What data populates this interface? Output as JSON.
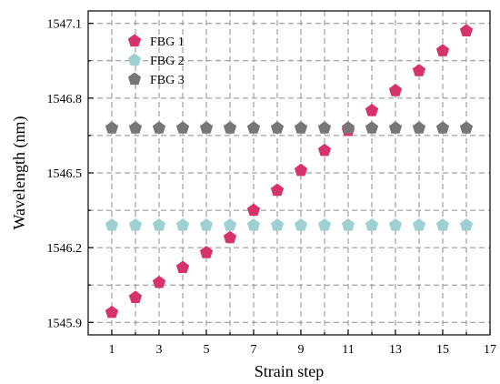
{
  "chart_data": {
    "type": "scatter",
    "title": "",
    "xlabel": "Strain step",
    "ylabel": "Wavelength (nm)",
    "xlim": [
      0,
      17
    ],
    "ylim": [
      1545.85,
      1547.15
    ],
    "xticks": [
      1,
      3,
      5,
      7,
      9,
      11,
      13,
      15,
      17
    ],
    "xtick_labels": [
      "1",
      "3",
      "5",
      "7",
      "9",
      "11",
      "13",
      "15",
      "17"
    ],
    "yticks": [
      1545.9,
      1546.2,
      1546.5,
      1546.8,
      1547.1
    ],
    "ytick_labels": [
      "1545.9",
      "1546.2",
      "1546.5",
      "1546.8",
      "1547.1"
    ],
    "x_minor_ticks": [
      2,
      4,
      6,
      8,
      10,
      12,
      14,
      16
    ],
    "y_minor_ticks": [
      1546.05,
      1546.35,
      1546.65,
      1546.95
    ],
    "grid": true,
    "grid_style": "dashed",
    "legend_position": "top-left",
    "marker": "pentagon",
    "series": [
      {
        "name": "FBG 1",
        "color": "#d6336c",
        "x": [
          1,
          2,
          3,
          4,
          5,
          6,
          7,
          8,
          9,
          10,
          11,
          12,
          13,
          14,
          15,
          16
        ],
        "y": [
          1545.94,
          1546.0,
          1546.06,
          1546.12,
          1546.18,
          1546.24,
          1546.35,
          1546.43,
          1546.51,
          1546.59,
          1546.67,
          1546.75,
          1546.83,
          1546.91,
          1546.99,
          1547.07
        ]
      },
      {
        "name": "FBG 2",
        "color": "#9fd0d1",
        "x": [
          1,
          2,
          3,
          4,
          5,
          6,
          7,
          8,
          9,
          10,
          11,
          12,
          13,
          14,
          15,
          16
        ],
        "y": [
          1546.29,
          1546.29,
          1546.29,
          1546.29,
          1546.29,
          1546.29,
          1546.29,
          1546.29,
          1546.29,
          1546.29,
          1546.29,
          1546.29,
          1546.29,
          1546.29,
          1546.29,
          1546.29
        ]
      },
      {
        "name": "FBG 3",
        "color": "#777777",
        "x": [
          1,
          2,
          3,
          4,
          5,
          6,
          7,
          8,
          9,
          10,
          11,
          12,
          13,
          14,
          15,
          16
        ],
        "y": [
          1546.68,
          1546.68,
          1546.68,
          1546.68,
          1546.68,
          1546.68,
          1546.68,
          1546.68,
          1546.68,
          1546.68,
          1546.68,
          1546.68,
          1546.68,
          1546.68,
          1546.68,
          1546.68
        ]
      }
    ]
  }
}
